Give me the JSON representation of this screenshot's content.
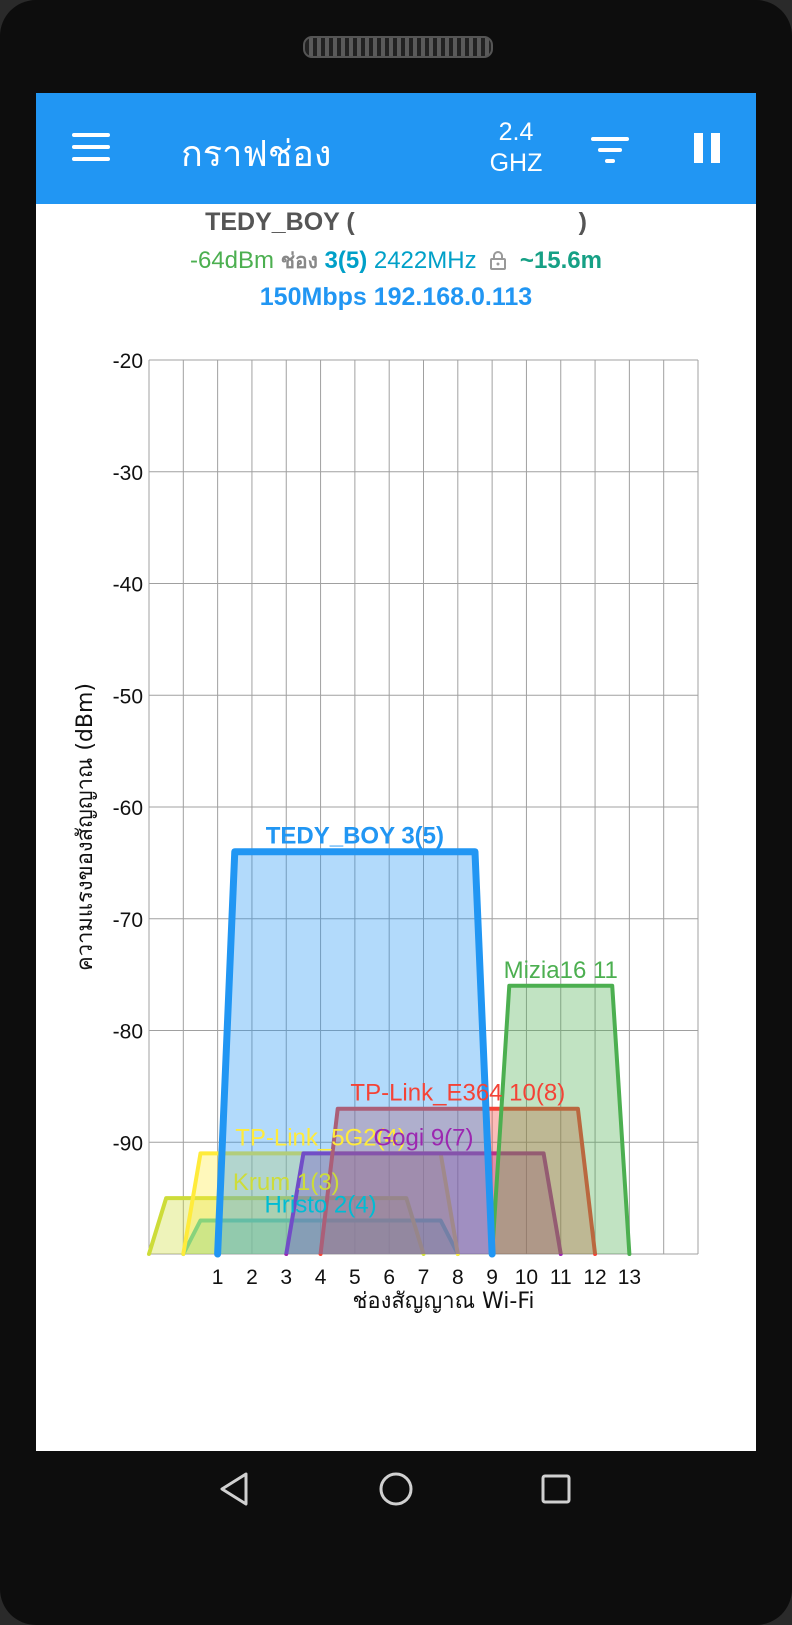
{
  "app": {
    "title": "กราฟช่อง",
    "band_line1": "2.4",
    "band_line2": "GHZ"
  },
  "connection": {
    "ssid": "TEDY_BOY",
    "ssid_open": "(",
    "ssid_close": ")",
    "signal": "-64dBm",
    "channel_label": "ช่อง",
    "channel": "3(5)",
    "frequency": "2422MHz",
    "distance": "~15.6m",
    "speed": "150Mbps",
    "ip": "192.168.0.113",
    "colors": {
      "signal": "#4CAF50",
      "channel": "#00A0C8",
      "distance": "#16A085",
      "speed": "#2196F3"
    }
  },
  "chart_data": {
    "type": "area",
    "xlabel": "ช่องสัญญาณ Wi-Fi",
    "ylabel": "ความแรงของสัญญาณ (dBm)",
    "ylim": [
      -100,
      -20
    ],
    "yticks": [
      -20,
      -30,
      -40,
      -50,
      -60,
      -70,
      -80,
      -90
    ],
    "xlim": [
      -1,
      15
    ],
    "xticks": [
      1,
      2,
      3,
      4,
      5,
      6,
      7,
      8,
      9,
      10,
      11,
      12,
      13
    ],
    "grid": true,
    "series": [
      {
        "name": "TEDY_BOY 3(5)",
        "center": 5,
        "half_width": 4,
        "level": -64,
        "color": "#2196F3"
      },
      {
        "name": "Mizia16 11",
        "center": 11,
        "half_width": 2,
        "level": -76,
        "color": "#4CAF50"
      },
      {
        "name": "TP-Link_E364 10(8)",
        "center": 8,
        "half_width": 4,
        "level": -87,
        "color": "#F44336"
      },
      {
        "name": "Gogi 9(7)",
        "center": 7,
        "half_width": 4,
        "level": -91,
        "color": "#9C27B0"
      },
      {
        "name": "TP-Link_5G2(4)",
        "center": 4,
        "half_width": 4,
        "level": -91,
        "color": "#FFEB3B"
      },
      {
        "name": "Krum 1(3)",
        "center": 3,
        "half_width": 4,
        "level": -95,
        "color": "#CDDC39"
      },
      {
        "name": "Hristo 2(4)",
        "center": 4,
        "half_width": 4,
        "level": -97,
        "color": "#00BCD4"
      }
    ]
  },
  "nav": {
    "back_icon": "back-triangle-icon",
    "home_icon": "home-circle-icon",
    "recents_icon": "recents-square-icon"
  }
}
